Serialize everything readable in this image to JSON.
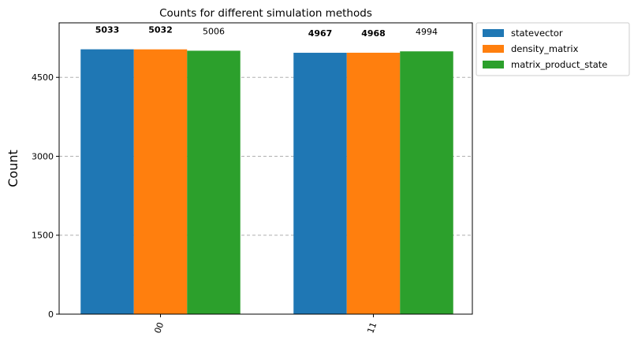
{
  "chart_data": {
    "type": "bar",
    "title": "Counts for different simulation methods",
    "xlabel": "",
    "ylabel": "Count",
    "categories": [
      "00",
      "11"
    ],
    "series": [
      {
        "name": "statevector",
        "values": [
          5033,
          4967
        ],
        "color": "#1f77b4"
      },
      {
        "name": "density_matrix",
        "values": [
          5032,
          4968
        ],
        "color": "#ff7f0e"
      },
      {
        "name": "matrix_product_state",
        "values": [
          5006,
          4994
        ],
        "color": "#2ca02c"
      }
    ],
    "ylim": [
      0,
      5536
    ],
    "yticks": [
      0,
      1500,
      3000,
      4500
    ],
    "grid": true,
    "grid_style": "dashed horizontal",
    "legend_position": "outside top-right",
    "xtick_rotation": "70 degrees"
  }
}
